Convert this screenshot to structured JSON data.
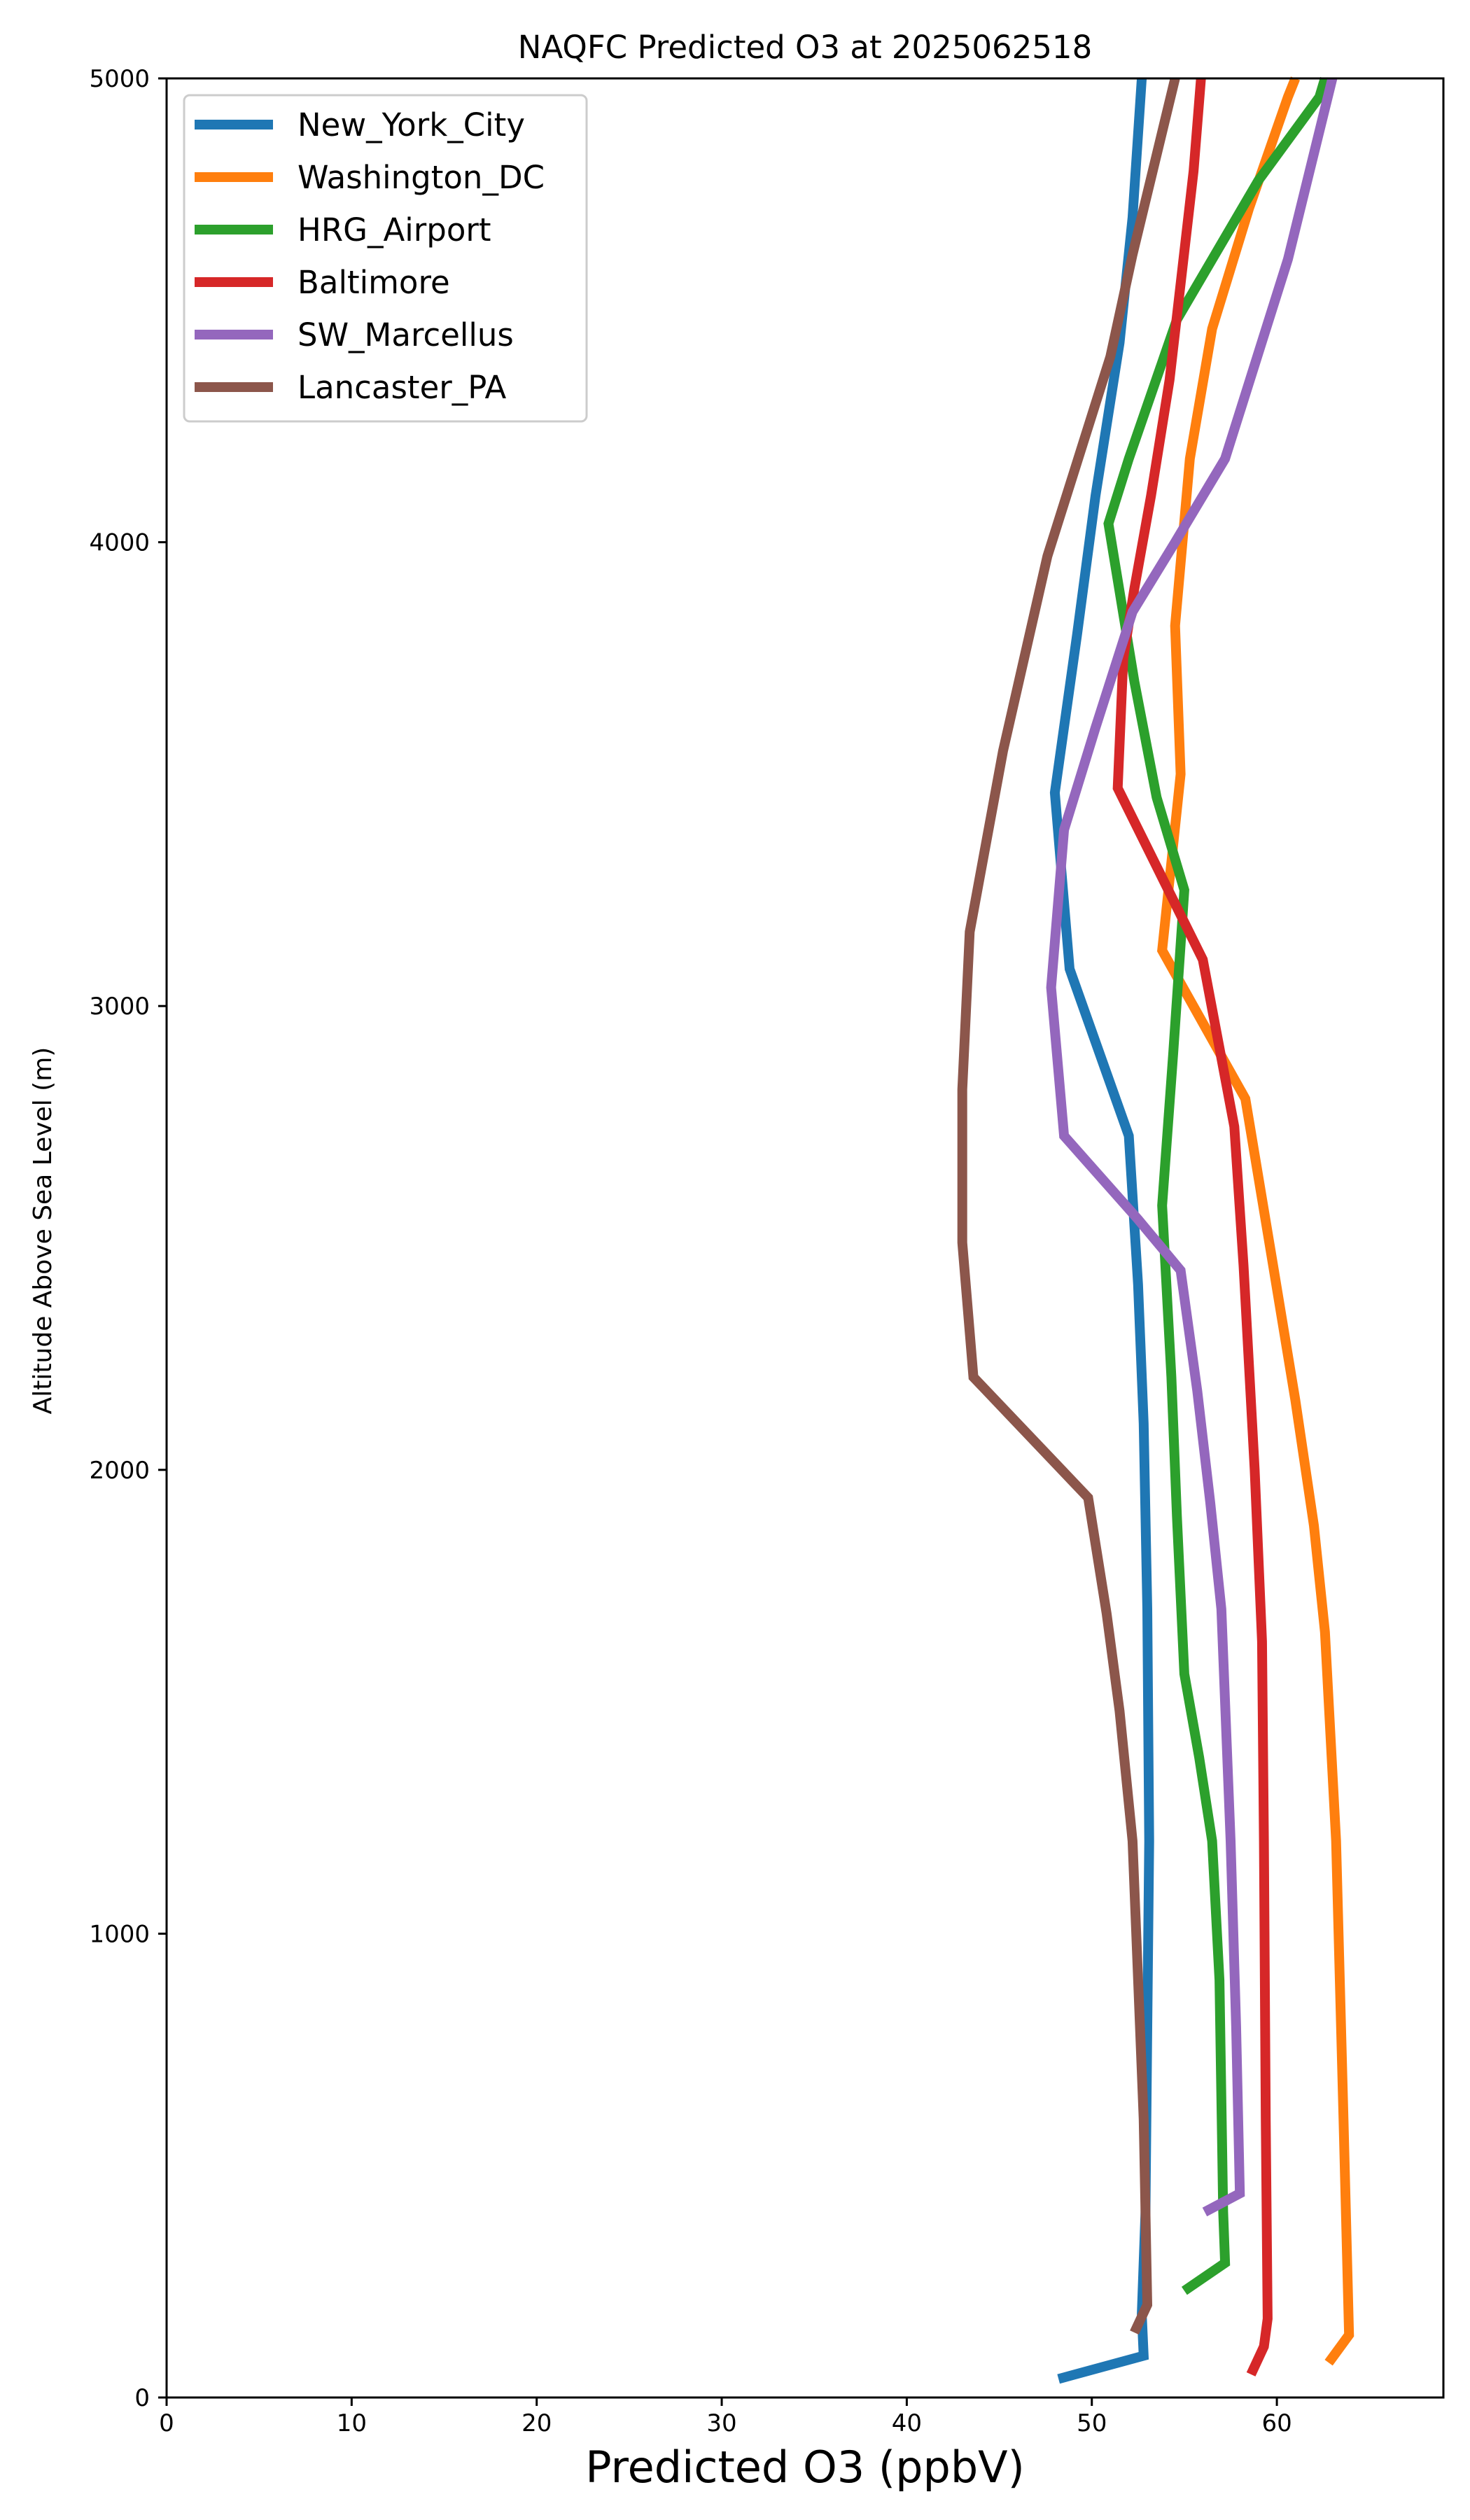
{
  "chart_data": {
    "type": "line",
    "title": "NAQFC Predicted O3 at 2025062518",
    "xlabel": "Predicted O3 (ppbV)",
    "ylabel": "Altitude Above Sea Level (m)",
    "xlim": [
      0,
      69
    ],
    "ylim": [
      0,
      5000
    ],
    "xticks": [
      "0",
      "10",
      "20",
      "30",
      "40",
      "50",
      "60"
    ],
    "yticks": [
      "0",
      "1000",
      "2000",
      "3000",
      "4000",
      "5000"
    ],
    "grid": false,
    "legend_position": "top-left",
    "series": [
      {
        "name": "New_York_City",
        "color": "#1f77b4",
        "points": [
          [
            48.2,
            40
          ],
          [
            52.8,
            90
          ],
          [
            52.7,
            180
          ],
          [
            52.9,
            400
          ],
          [
            53.0,
            800
          ],
          [
            53.1,
            1200
          ],
          [
            53.0,
            1700
          ],
          [
            52.8,
            2100
          ],
          [
            52.5,
            2400
          ],
          [
            52.0,
            2720
          ],
          [
            48.8,
            3080
          ],
          [
            48.0,
            3460
          ],
          [
            49.2,
            3800
          ],
          [
            50.2,
            4100
          ],
          [
            51.5,
            4430
          ],
          [
            52.2,
            4700
          ],
          [
            52.7,
            5000
          ]
        ]
      },
      {
        "name": "Washington_DC",
        "color": "#ff7f0e",
        "points": [
          [
            62.8,
            75
          ],
          [
            63.9,
            135
          ],
          [
            63.6,
            600
          ],
          [
            63.2,
            1200
          ],
          [
            62.6,
            1650
          ],
          [
            62.0,
            1880
          ],
          [
            61.0,
            2150
          ],
          [
            59.8,
            2440
          ],
          [
            58.3,
            2800
          ],
          [
            53.8,
            3120
          ],
          [
            54.8,
            3500
          ],
          [
            54.5,
            3820
          ],
          [
            55.3,
            4180
          ],
          [
            56.5,
            4460
          ],
          [
            58.5,
            4720
          ],
          [
            60.6,
            4960
          ],
          [
            61.0,
            5000
          ]
        ]
      },
      {
        "name": "HRG_Airport",
        "color": "#2ca02c",
        "points": [
          [
            55.0,
            230
          ],
          [
            57.2,
            290
          ],
          [
            57.1,
            400
          ],
          [
            56.9,
            900
          ],
          [
            56.5,
            1200
          ],
          [
            55.8,
            1380
          ],
          [
            55.0,
            1560
          ],
          [
            54.6,
            1900
          ],
          [
            54.3,
            2200
          ],
          [
            53.8,
            2570
          ],
          [
            54.4,
            2900
          ],
          [
            55.0,
            3250
          ],
          [
            53.5,
            3450
          ],
          [
            52.3,
            3700
          ],
          [
            50.9,
            4040
          ],
          [
            52.0,
            4180
          ],
          [
            54.6,
            4480
          ],
          [
            59.0,
            4780
          ],
          [
            62.3,
            4960
          ],
          [
            62.6,
            5000
          ]
        ]
      },
      {
        "name": "Baltimore",
        "color": "#d62728",
        "points": [
          [
            58.6,
            50
          ],
          [
            59.3,
            110
          ],
          [
            59.5,
            170
          ],
          [
            59.4,
            600
          ],
          [
            59.3,
            1200
          ],
          [
            59.2,
            1630
          ],
          [
            58.8,
            2000
          ],
          [
            58.2,
            2440
          ],
          [
            57.7,
            2740
          ],
          [
            56.0,
            3100
          ],
          [
            51.4,
            3470
          ],
          [
            51.7,
            3750
          ],
          [
            52.3,
            3900
          ],
          [
            53.2,
            4100
          ],
          [
            54.2,
            4350
          ],
          [
            55.5,
            4800
          ],
          [
            55.9,
            5000
          ]
        ]
      },
      {
        "name": "SW_Marcellus",
        "color": "#9467bd",
        "points": [
          [
            56.1,
            400
          ],
          [
            58.0,
            440
          ],
          [
            57.8,
            800
          ],
          [
            57.5,
            1200
          ],
          [
            57.0,
            1700
          ],
          [
            56.4,
            1930
          ],
          [
            55.7,
            2170
          ],
          [
            54.8,
            2430
          ],
          [
            52.5,
            2540
          ],
          [
            48.5,
            2720
          ],
          [
            47.8,
            3040
          ],
          [
            48.5,
            3380
          ],
          [
            50.2,
            3600
          ],
          [
            52.2,
            3850
          ],
          [
            54.5,
            4000
          ],
          [
            57.2,
            4180
          ],
          [
            60.6,
            4610
          ],
          [
            63.0,
            5000
          ]
        ]
      },
      {
        "name": "Lancaster_PA",
        "color": "#8c564b",
        "points": [
          [
            52.3,
            140
          ],
          [
            53.0,
            200
          ],
          [
            52.8,
            600
          ],
          [
            52.2,
            1200
          ],
          [
            51.5,
            1480
          ],
          [
            50.8,
            1690
          ],
          [
            49.8,
            1940
          ],
          [
            43.6,
            2200
          ],
          [
            43.0,
            2490
          ],
          [
            43.0,
            2820
          ],
          [
            43.4,
            3160
          ],
          [
            45.2,
            3550
          ],
          [
            47.6,
            3970
          ],
          [
            51.0,
            4400
          ],
          [
            52.2,
            4620
          ],
          [
            54.5,
            5000
          ]
        ]
      }
    ]
  }
}
